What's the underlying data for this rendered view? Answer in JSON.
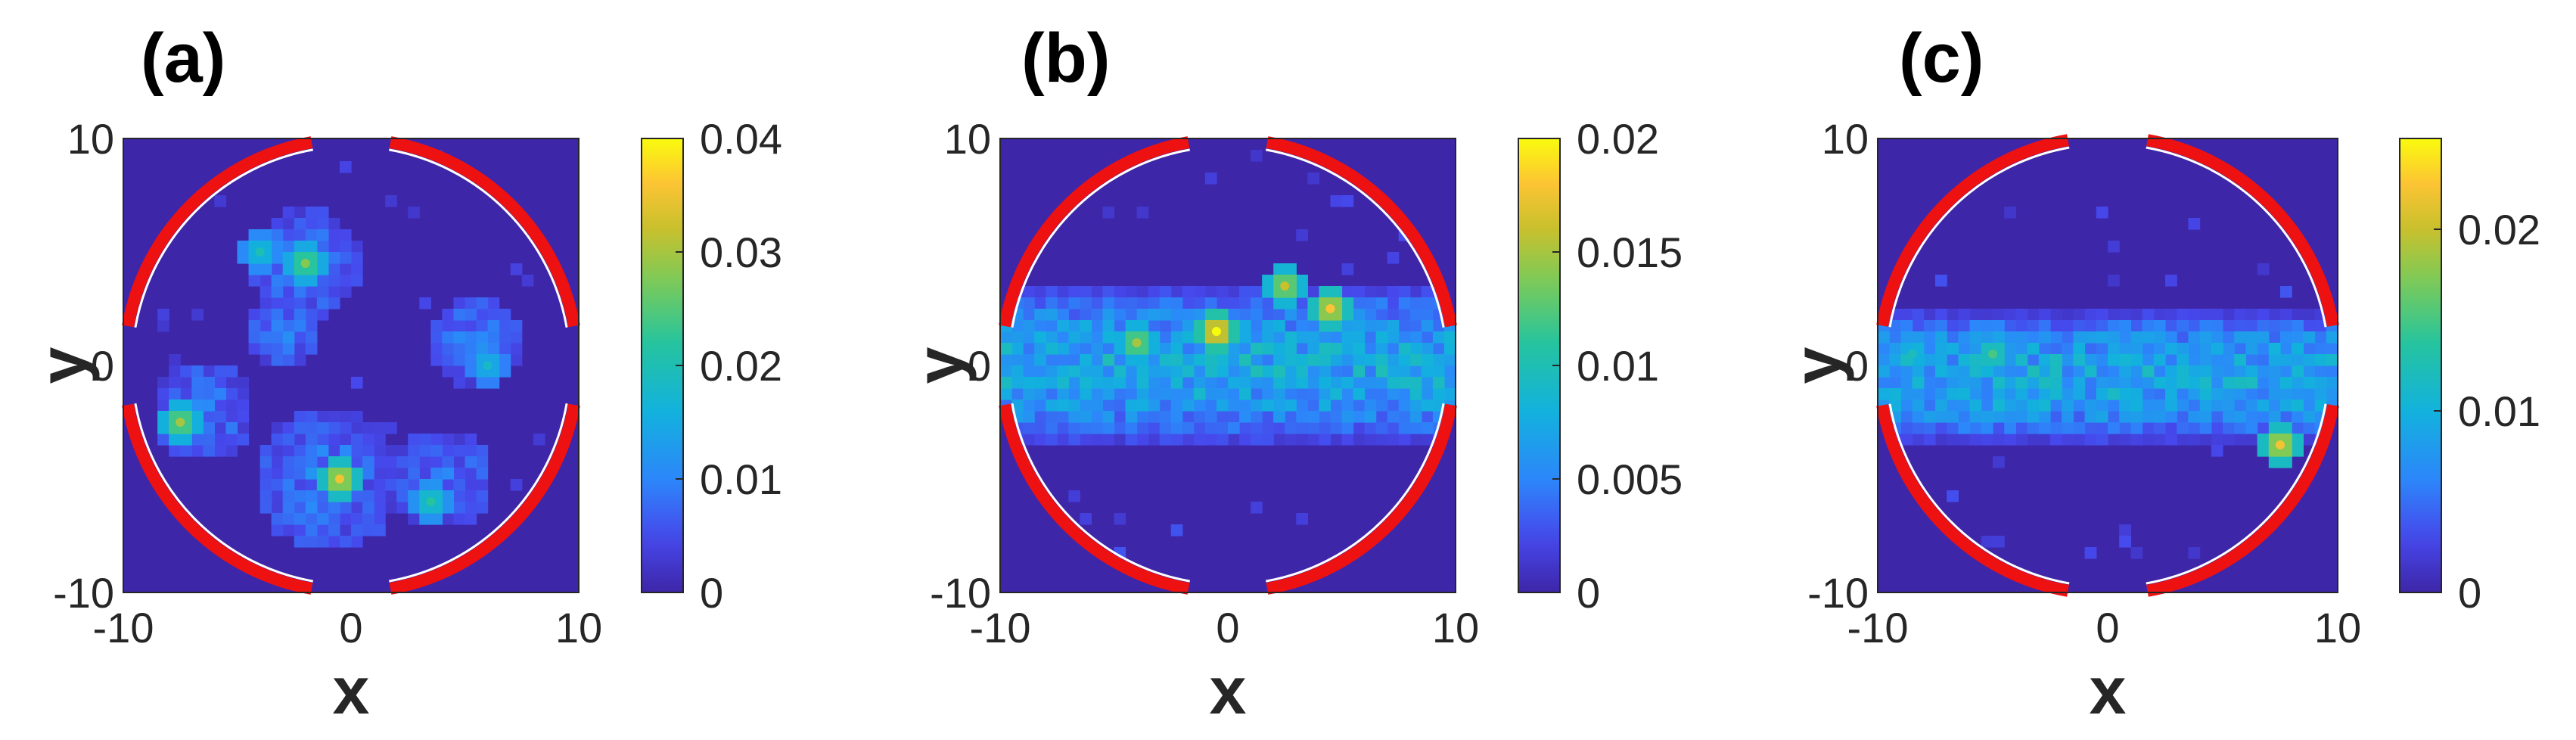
{
  "chart_data": [
    {
      "type": "heatmap",
      "panel_label": "(a)",
      "title": "",
      "xlabel": "x",
      "ylabel": "y",
      "xlim": [
        -10,
        10
      ],
      "ylim": [
        -10,
        10
      ],
      "x_ticks": [
        "-10",
        "0",
        "10"
      ],
      "y_ticks": [
        "10",
        "0",
        "-10"
      ],
      "colorbar": {
        "range": [
          0,
          0.04
        ],
        "ticks": [
          "0.04",
          "0.03",
          "0.02",
          "0.01",
          "0"
        ],
        "tick_values": [
          0.04,
          0.03,
          0.02,
          0.01,
          0
        ]
      },
      "description_of_density": "particle distribution across whole circular domain, clusters near (-1,-5), (-7,-2), (-2,4)",
      "hotspots": [
        {
          "x": -0.5,
          "y": -5,
          "value": 0.035
        },
        {
          "x": -7.5,
          "y": -2.5,
          "value": 0.03
        },
        {
          "x": -2,
          "y": 4.5,
          "value": 0.028
        },
        {
          "x": 3.5,
          "y": -6,
          "value": 0.022
        },
        {
          "x": -4,
          "y": 5,
          "value": 0.02
        },
        {
          "x": 6,
          "y": 0,
          "value": 0.018
        }
      ]
    },
    {
      "type": "heatmap",
      "panel_label": "(b)",
      "title": "",
      "xlabel": "x",
      "ylabel": "y",
      "xlim": [
        -10,
        10
      ],
      "ylim": [
        -10,
        10
      ],
      "x_ticks": [
        "-10",
        "0",
        "10"
      ],
      "y_ticks": [
        "10",
        "0",
        "-10"
      ],
      "colorbar": {
        "range": [
          0,
          0.02
        ],
        "ticks": [
          "0.02",
          "0.015",
          "0.01",
          "0.005",
          "0"
        ],
        "tick_values": [
          0.02,
          0.015,
          0.01,
          0.005,
          0
        ]
      },
      "description_of_density": "horizontal band concentrated between y=-3 and y=3",
      "band": {
        "ymin": -3,
        "ymax": 3
      },
      "hotspots": [
        {
          "x": -0.5,
          "y": 1.5,
          "value": 0.02
        },
        {
          "x": 4.5,
          "y": 2.5,
          "value": 0.018
        },
        {
          "x": -4,
          "y": 1,
          "value": 0.015
        },
        {
          "x": 2.5,
          "y": 3.5,
          "value": 0.016
        }
      ]
    },
    {
      "type": "heatmap",
      "panel_label": "(c)",
      "title": "",
      "xlabel": "x",
      "ylabel": "y",
      "xlim": [
        -10,
        10
      ],
      "ylim": [
        -10,
        10
      ],
      "x_ticks": [
        "-10",
        "0",
        "10"
      ],
      "y_ticks": [
        "10",
        "0",
        "-10"
      ],
      "colorbar": {
        "range": [
          0,
          0.025
        ],
        "ticks": [
          "0.02",
          "0.01",
          "0"
        ],
        "tick_values": [
          0.02,
          0.01,
          0
        ]
      },
      "description_of_density": "narrower horizontal band between y=-3 and y=2",
      "band": {
        "ymin": -3,
        "ymax": 2
      },
      "hotspots": [
        {
          "x": 7.5,
          "y": -3.5,
          "value": 0.022
        },
        {
          "x": -5,
          "y": 0.5,
          "value": 0.015
        },
        {
          "x": -8.5,
          "y": 0.5,
          "value": 0.012
        }
      ]
    }
  ]
}
